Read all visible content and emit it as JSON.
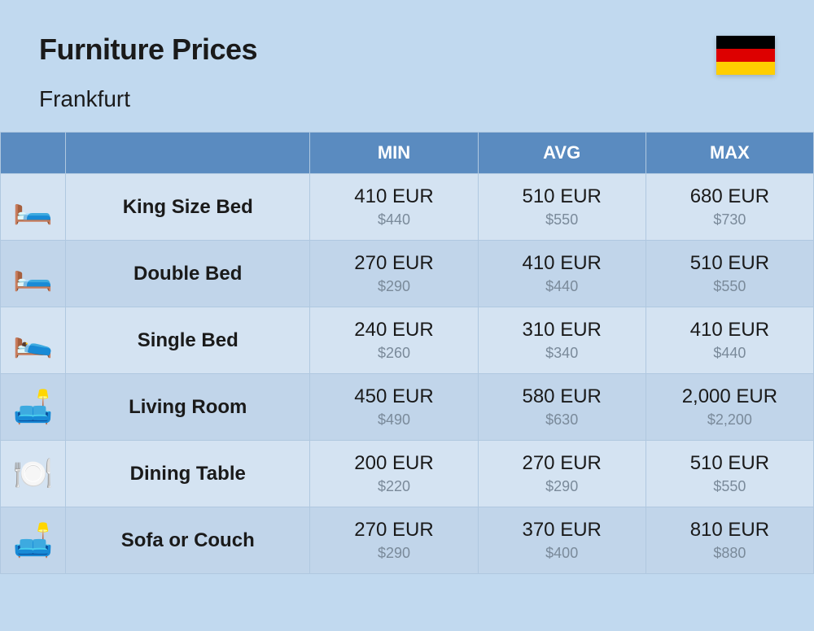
{
  "title": "Furniture Prices",
  "subtitle": "Frankfurt",
  "flag": {
    "colors": [
      "#000000",
      "#dd0000",
      "#ffce00"
    ]
  },
  "table": {
    "headers": {
      "min": "MIN",
      "avg": "AVG",
      "max": "MAX"
    },
    "header_bg": "#5a8bc0",
    "header_fg": "#ffffff",
    "row_bg_even": "#d4e3f2",
    "row_bg_odd": "#c1d5ea",
    "border_color": "#b0c8e0",
    "primary_currency": "EUR",
    "secondary_currency_prefix": "$",
    "title_fontsize": 36,
    "subtitle_fontsize": 28,
    "header_fontsize": 22,
    "name_fontsize": 24,
    "price_main_fontsize": 24,
    "price_sub_fontsize": 18,
    "price_sub_color": "#7a8a9a",
    "rows": [
      {
        "icon": "🛏️",
        "name": "King Size Bed",
        "min_eur": "410",
        "min_usd": "440",
        "avg_eur": "510",
        "avg_usd": "550",
        "max_eur": "680",
        "max_usd": "730"
      },
      {
        "icon": "🛏️",
        "name": "Double Bed",
        "min_eur": "270",
        "min_usd": "290",
        "avg_eur": "410",
        "avg_usd": "440",
        "max_eur": "510",
        "max_usd": "550"
      },
      {
        "icon": "🛌",
        "name": "Single Bed",
        "min_eur": "240",
        "min_usd": "260",
        "avg_eur": "310",
        "avg_usd": "340",
        "max_eur": "410",
        "max_usd": "440"
      },
      {
        "icon": "🛋️",
        "name": "Living Room",
        "min_eur": "450",
        "min_usd": "490",
        "avg_eur": "580",
        "avg_usd": "630",
        "max_eur": "2,000",
        "max_usd": "2,200"
      },
      {
        "icon": "🍽️",
        "name": "Dining Table",
        "min_eur": "200",
        "min_usd": "220",
        "avg_eur": "270",
        "avg_usd": "290",
        "max_eur": "510",
        "max_usd": "550"
      },
      {
        "icon": "🛋️",
        "name": "Sofa or Couch",
        "min_eur": "270",
        "min_usd": "290",
        "avg_eur": "370",
        "avg_usd": "400",
        "max_eur": "810",
        "max_usd": "880"
      }
    ]
  },
  "background_color": "#c1d9ef"
}
